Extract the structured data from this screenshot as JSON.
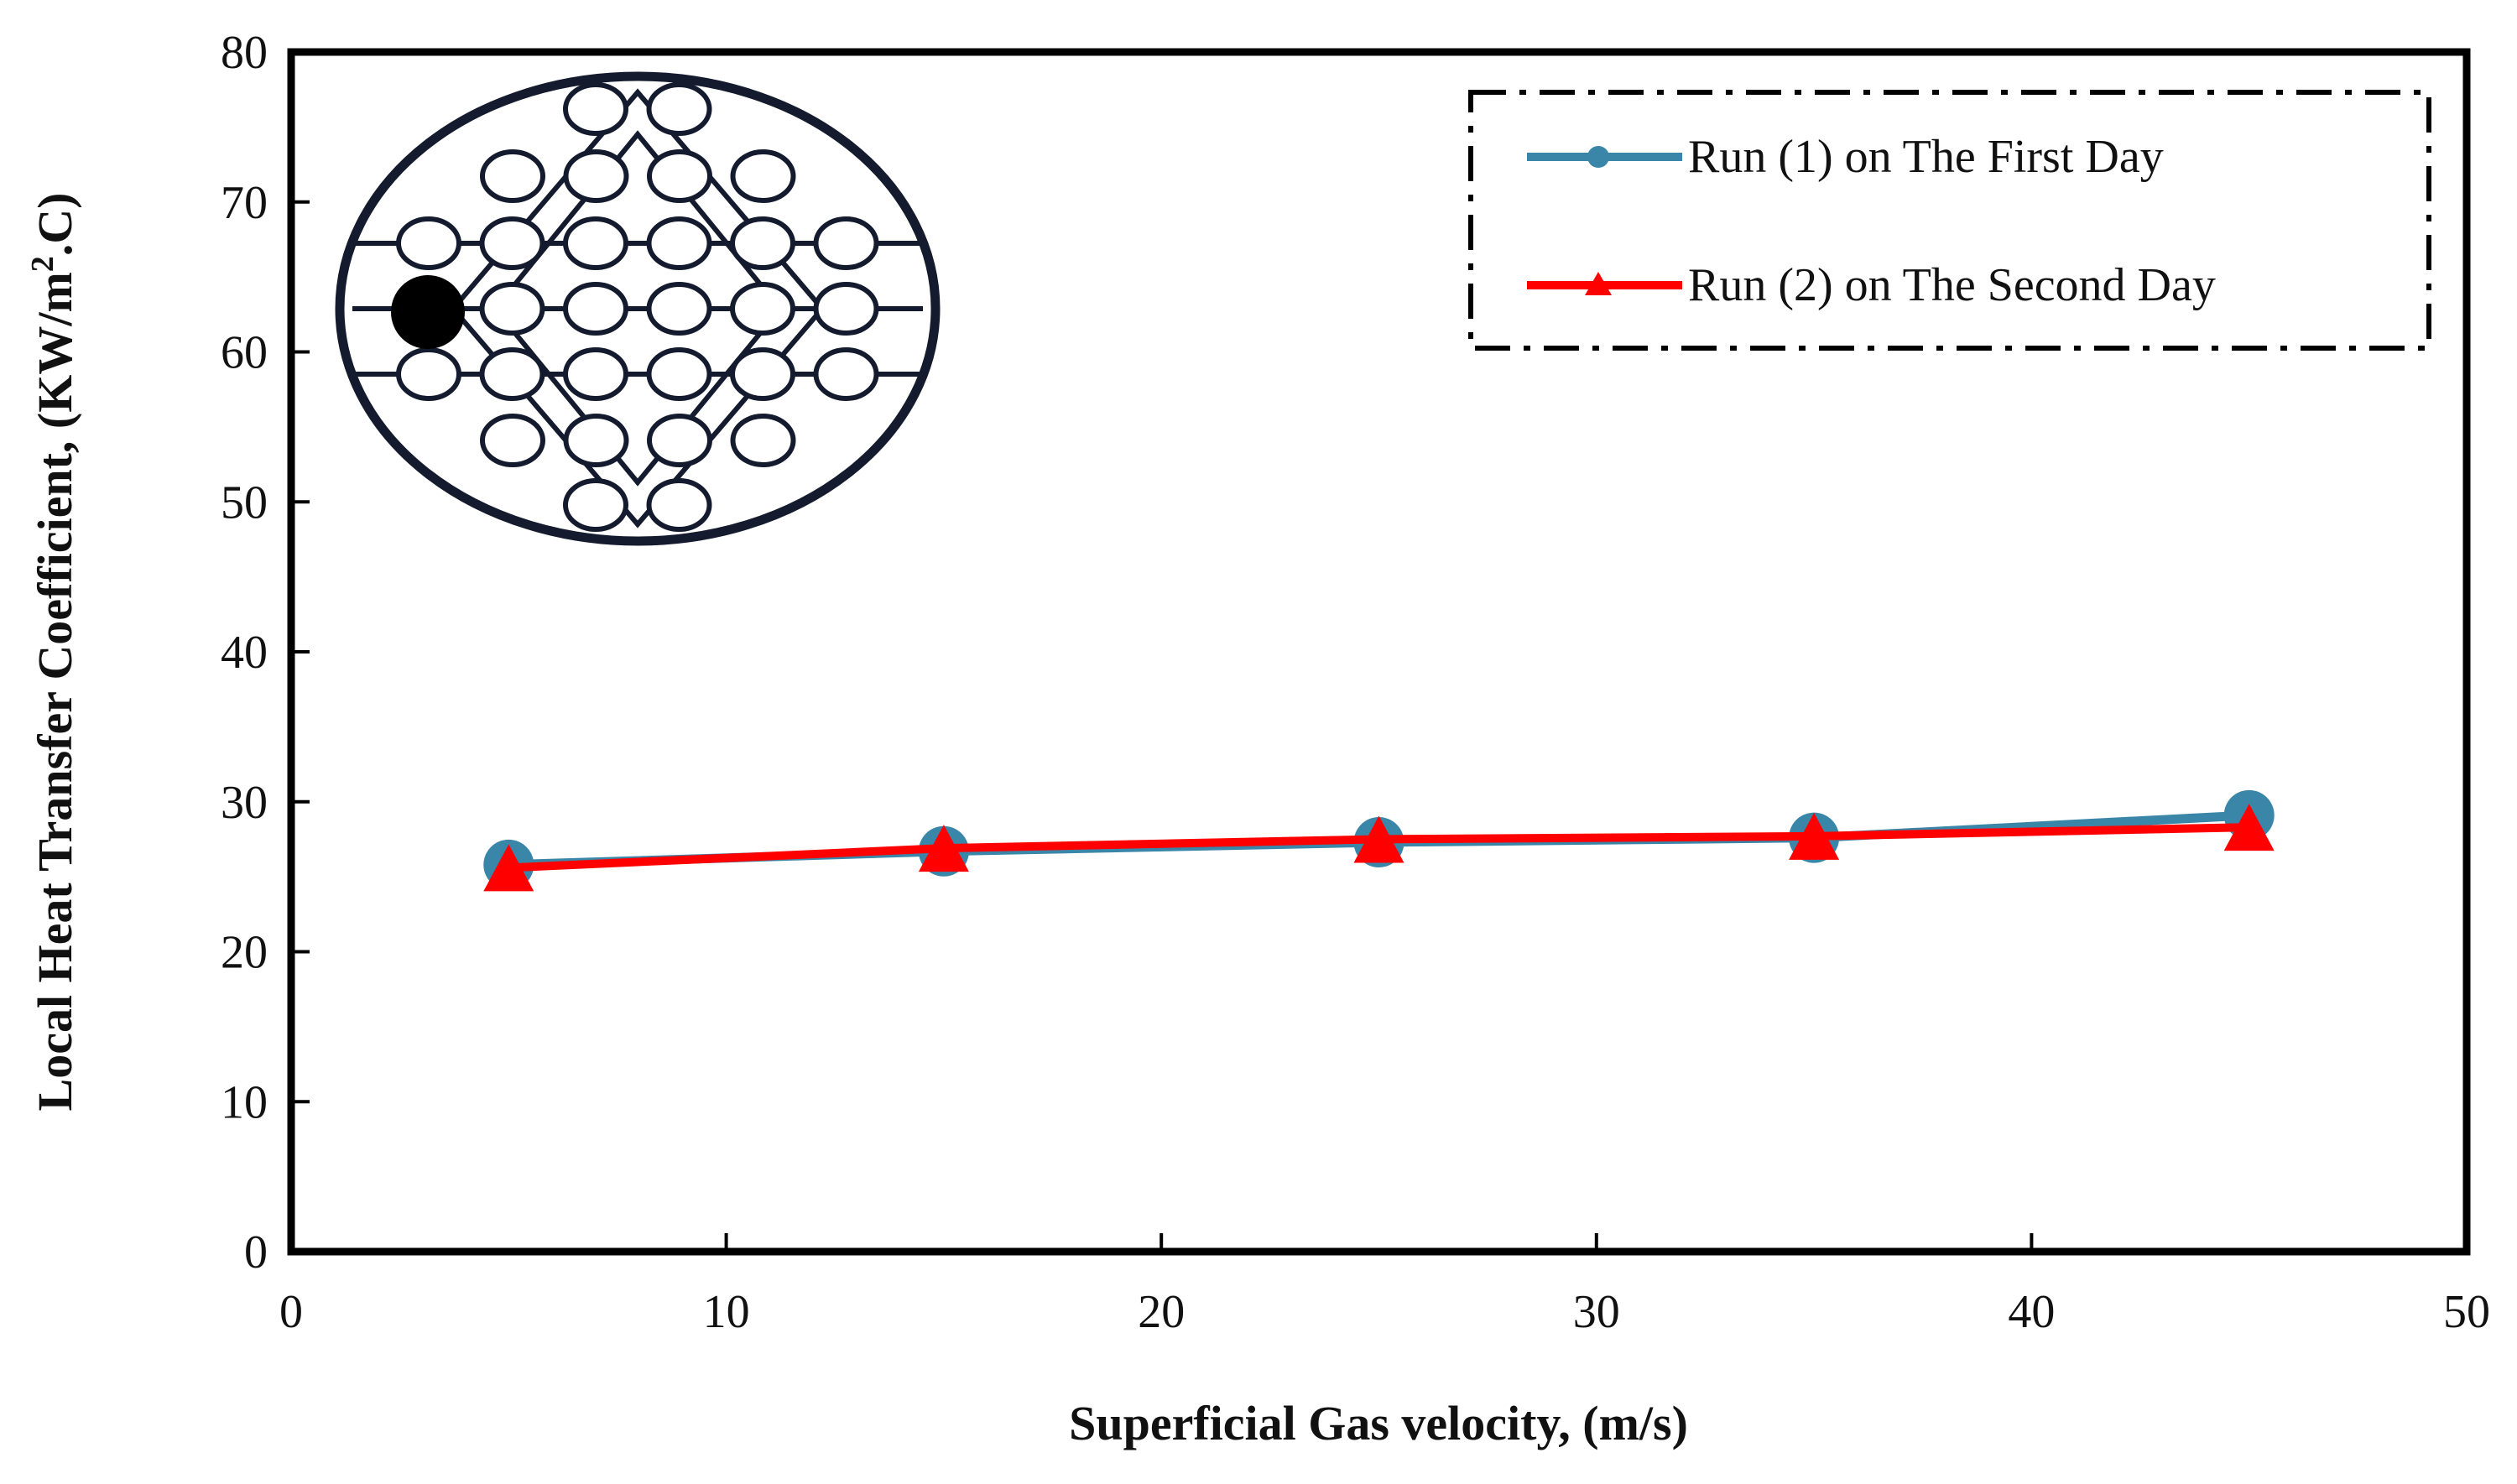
{
  "colors": {
    "series1": "#3a86a8",
    "series2": "#ff0000",
    "axis": "#000000",
    "diagram_fill": "#ffffff",
    "diagram_stroke": "#141b2e"
  },
  "chart_data": {
    "type": "line",
    "title": "",
    "xlabel": "Superficial Gas velocity, (m/s)",
    "ylabel_main": "Local Heat Transfer Coefficient, (KW/m",
    "ylabel_sup": "2",
    "ylabel_tail": ".C)",
    "xlim": [
      0,
      50
    ],
    "ylim": [
      0,
      80
    ],
    "xticks": [
      0,
      10,
      20,
      30,
      40,
      50
    ],
    "yticks": [
      0,
      10,
      20,
      30,
      40,
      50,
      60,
      70,
      80
    ],
    "grid": false,
    "legend_position": "top-right",
    "series": [
      {
        "name": "Run (1) on The First Day",
        "marker": "circle",
        "color": "#3a86a8",
        "x": [
          5,
          15,
          25,
          35,
          45
        ],
        "y": [
          25.8,
          26.7,
          27.3,
          27.6,
          29.1
        ]
      },
      {
        "name": "Run (2) on The Second Day",
        "marker": "triangle",
        "color": "#ff0000",
        "x": [
          5,
          15,
          25,
          35,
          45
        ],
        "y": [
          25.6,
          26.9,
          27.5,
          27.7,
          28.3
        ]
      }
    ]
  }
}
